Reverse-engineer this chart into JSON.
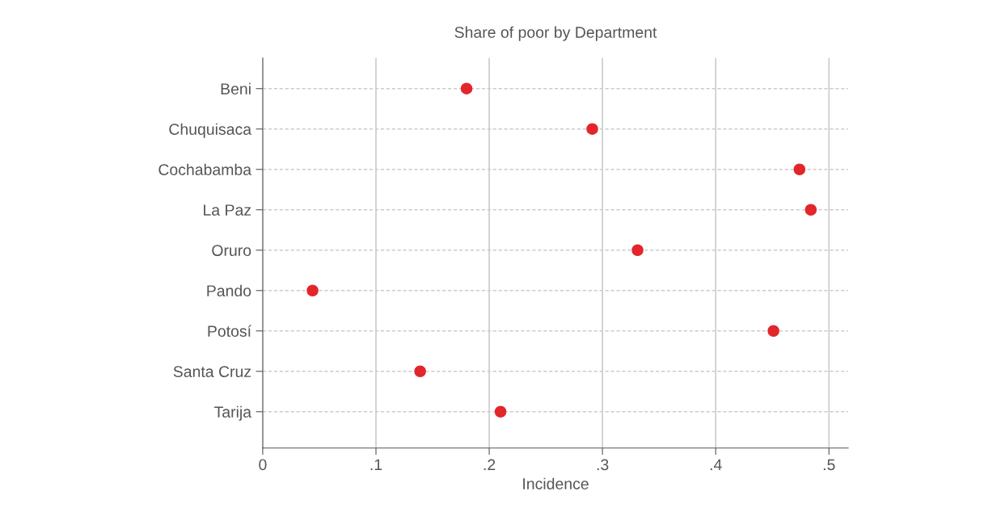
{
  "chart_data": {
    "type": "scatter",
    "orientation": "horizontal",
    "title": "Share of poor by Department",
    "xlabel": "Incidence",
    "categories": [
      "Beni",
      "Chuquisaca",
      "Cochabamba",
      "La Paz",
      "Oruro",
      "Pando",
      "Potosí",
      "Santa Cruz",
      "Tarija"
    ],
    "series": [
      {
        "color": "#e3262b",
        "values": [
          0.18,
          0.291,
          0.474,
          0.484,
          0.331,
          0.044,
          0.451,
          0.139,
          0.21
        ]
      }
    ],
    "xlim": [
      0,
      0.517
    ],
    "xticks": [
      0,
      {
        "value": 0.1,
        "label": ".1"
      },
      {
        "value": 0.2,
        "label": ".2"
      },
      {
        "value": 0.3,
        "label": ".3"
      },
      {
        "value": 0.4,
        "label": ".4"
      },
      {
        "value": 0.5,
        "label": ".5"
      }
    ],
    "grid": true,
    "marker": "circle",
    "legend": false
  }
}
